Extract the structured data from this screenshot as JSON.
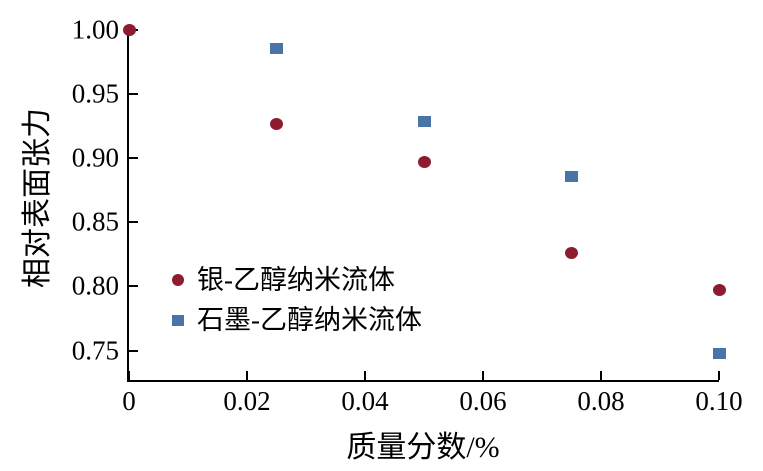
{
  "chart_data": {
    "type": "scatter",
    "title": "",
    "xlabel": "质量分数/%",
    "ylabel": "相对表面张力",
    "xlim": [
      0,
      0.1
    ],
    "ylim": [
      0.727,
      1.0
    ],
    "grid": false,
    "axis_color": "#000000",
    "legend_position": "inside-lower-left",
    "xticks": [
      {
        "value": 0.0,
        "label": "0"
      },
      {
        "value": 0.02,
        "label": "0.02"
      },
      {
        "value": 0.04,
        "label": "0.04"
      },
      {
        "value": 0.06,
        "label": "0.06"
      },
      {
        "value": 0.08,
        "label": "0.08"
      },
      {
        "value": 0.1,
        "label": "0.10"
      }
    ],
    "yticks": [
      {
        "value": 0.75,
        "label": "0.75"
      },
      {
        "value": 0.8,
        "label": "0.80"
      },
      {
        "value": 0.85,
        "label": "0.85"
      },
      {
        "value": 0.9,
        "label": "0.90"
      },
      {
        "value": 0.95,
        "label": "0.95"
      },
      {
        "value": 1.0,
        "label": "1.00"
      }
    ],
    "series": [
      {
        "name": "银-乙醇纳米流体",
        "marker": "circle",
        "color": "#8e1b2e",
        "x": [
          0,
          0.025,
          0.05,
          0.075,
          0.1
        ],
        "y": [
          1.0,
          0.927,
          0.897,
          0.826,
          0.797
        ]
      },
      {
        "name": "石墨-乙醇纳米流体",
        "marker": "square",
        "color": "#4a73a8",
        "x": [
          0.025,
          0.05,
          0.075,
          0.1
        ],
        "y": [
          0.985,
          0.928,
          0.885,
          0.747
        ]
      }
    ]
  }
}
